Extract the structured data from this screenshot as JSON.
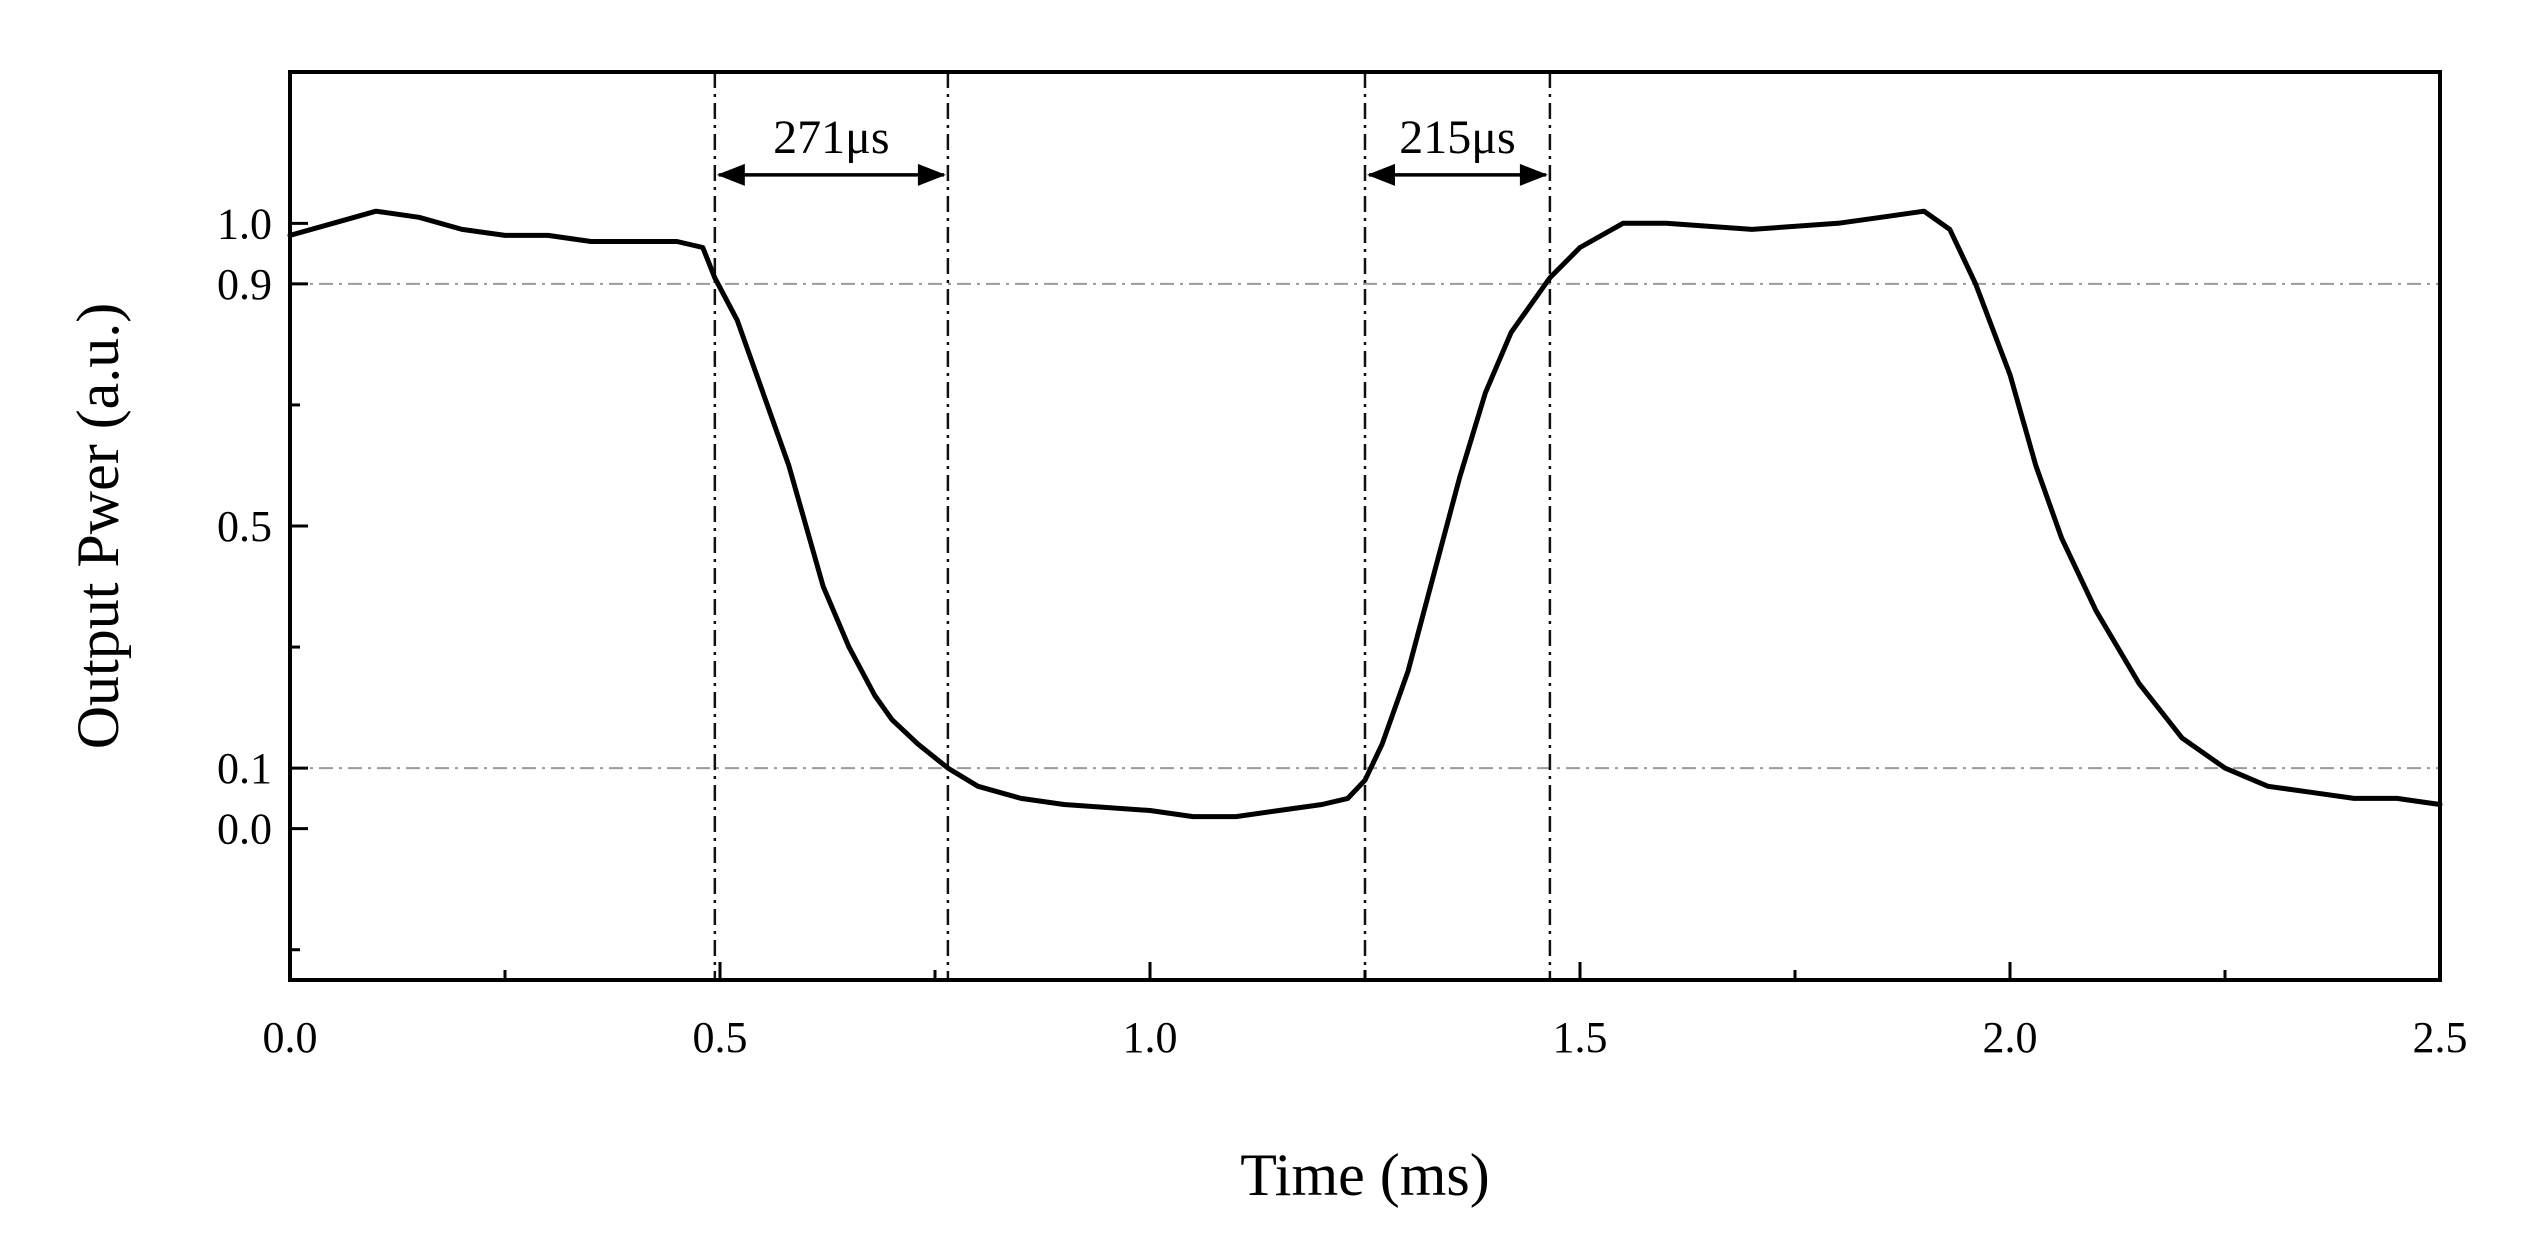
{
  "chart_data": {
    "type": "line",
    "xlabel": "Time (ms)",
    "ylabel": "Output Pwer (a.u.)",
    "xlim": [
      0.0,
      2.5
    ],
    "ylim": [
      -0.25,
      1.25
    ],
    "x_ticks": [
      "0.0",
      "0.5",
      "1.0",
      "1.5",
      "2.0",
      "2.5"
    ],
    "x_tick_values": [
      0.0,
      0.5,
      1.0,
      1.5,
      2.0,
      2.5
    ],
    "y_ticks": [
      "0.0",
      "0.1",
      "0.5",
      "0.9",
      "1.0"
    ],
    "y_tick_values": [
      0.0,
      0.1,
      0.5,
      0.9,
      1.0
    ],
    "grid": false,
    "reference_lines_y": [
      0.1,
      0.9
    ],
    "marker_lines_x": [
      0.494,
      0.765,
      1.25,
      1.465
    ],
    "annotations": [
      {
        "text": "271μs",
        "x_start": 0.494,
        "x_end": 0.765,
        "y": 1.08
      },
      {
        "text": "215μs",
        "x_start": 1.25,
        "x_end": 1.465,
        "y": 1.08
      }
    ],
    "series": [
      {
        "x": [
          0.0,
          0.05,
          0.1,
          0.15,
          0.2,
          0.25,
          0.3,
          0.35,
          0.4,
          0.45,
          0.48,
          0.494,
          0.52,
          0.55,
          0.58,
          0.6,
          0.62,
          0.65,
          0.68,
          0.7,
          0.73,
          0.765,
          0.8,
          0.85,
          0.9,
          1.0,
          1.05,
          1.1,
          1.15,
          1.2,
          1.23,
          1.25,
          1.27,
          1.3,
          1.33,
          1.36,
          1.39,
          1.42,
          1.465,
          1.5,
          1.55,
          1.6,
          1.7,
          1.8,
          1.85,
          1.9,
          1.93,
          1.96,
          2.0,
          2.03,
          2.06,
          2.1,
          2.15,
          2.2,
          2.25,
          2.3,
          2.35,
          2.4,
          2.45,
          2.5
        ],
        "y": [
          0.98,
          1.0,
          1.02,
          1.01,
          0.99,
          0.98,
          0.98,
          0.97,
          0.97,
          0.97,
          0.96,
          0.91,
          0.84,
          0.72,
          0.6,
          0.5,
          0.4,
          0.3,
          0.22,
          0.18,
          0.14,
          0.1,
          0.07,
          0.05,
          0.04,
          0.03,
          0.02,
          0.02,
          0.03,
          0.04,
          0.05,
          0.08,
          0.14,
          0.26,
          0.42,
          0.58,
          0.72,
          0.82,
          0.91,
          0.96,
          1.0,
          1.0,
          0.99,
          1.0,
          1.01,
          1.02,
          0.99,
          0.9,
          0.75,
          0.6,
          0.48,
          0.36,
          0.24,
          0.15,
          0.1,
          0.07,
          0.06,
          0.05,
          0.05,
          0.04
        ]
      }
    ]
  }
}
